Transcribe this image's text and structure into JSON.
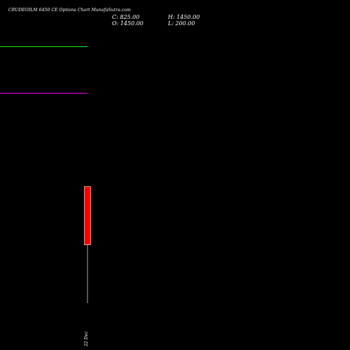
{
  "chart_data": {
    "type": "candlestick",
    "title": "CRUDEOILM 6450  CE Options  Chart MunafaSutra.com",
    "ohlc_labels": {
      "close": "C: 825.00",
      "open": "O: 1450.00",
      "high": "H: 1450.00",
      "low": "L: 200.00"
    },
    "candles": [
      {
        "date": "22 Dec",
        "open": 1450.0,
        "high": 1450.0,
        "low": 200.0,
        "close": 825.0,
        "color": "#ff0000"
      }
    ],
    "reference_lines": [
      {
        "value": 2950,
        "color": "#00ff00"
      },
      {
        "value": 2450,
        "color": "#ff00ff"
      }
    ],
    "y_range": [
      200,
      3450
    ],
    "grid": false,
    "background": "#000000"
  }
}
